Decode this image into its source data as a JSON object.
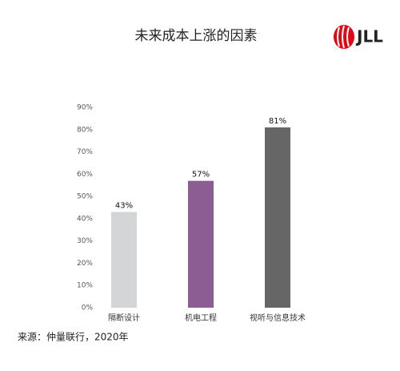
{
  "chart_data": {
    "type": "bar",
    "title": "未来成本上涨的因素",
    "logo": "JLL",
    "categories": [
      "隔断设计",
      "机电工程",
      "视听与信息技术"
    ],
    "values": [
      43,
      57,
      81
    ],
    "value_labels": [
      "43%",
      "57%",
      "81%"
    ],
    "colors": [
      "#d4d5d7",
      "#8b5d92",
      "#666666"
    ],
    "ylim": [
      0,
      90
    ],
    "yticks": [
      {
        "value": 0,
        "label": "0%"
      },
      {
        "value": 10,
        "label": "10%"
      },
      {
        "value": 20,
        "label": "20%"
      },
      {
        "value": 30,
        "label": "30%"
      },
      {
        "value": 40,
        "label": "40%"
      },
      {
        "value": 50,
        "label": "50%"
      },
      {
        "value": 60,
        "label": "60%"
      },
      {
        "value": 70,
        "label": "70%"
      },
      {
        "value": 80,
        "label": "80%"
      },
      {
        "value": 90,
        "label": "90%"
      }
    ],
    "grid": false,
    "source": "来源：仲量联行，2020年"
  }
}
